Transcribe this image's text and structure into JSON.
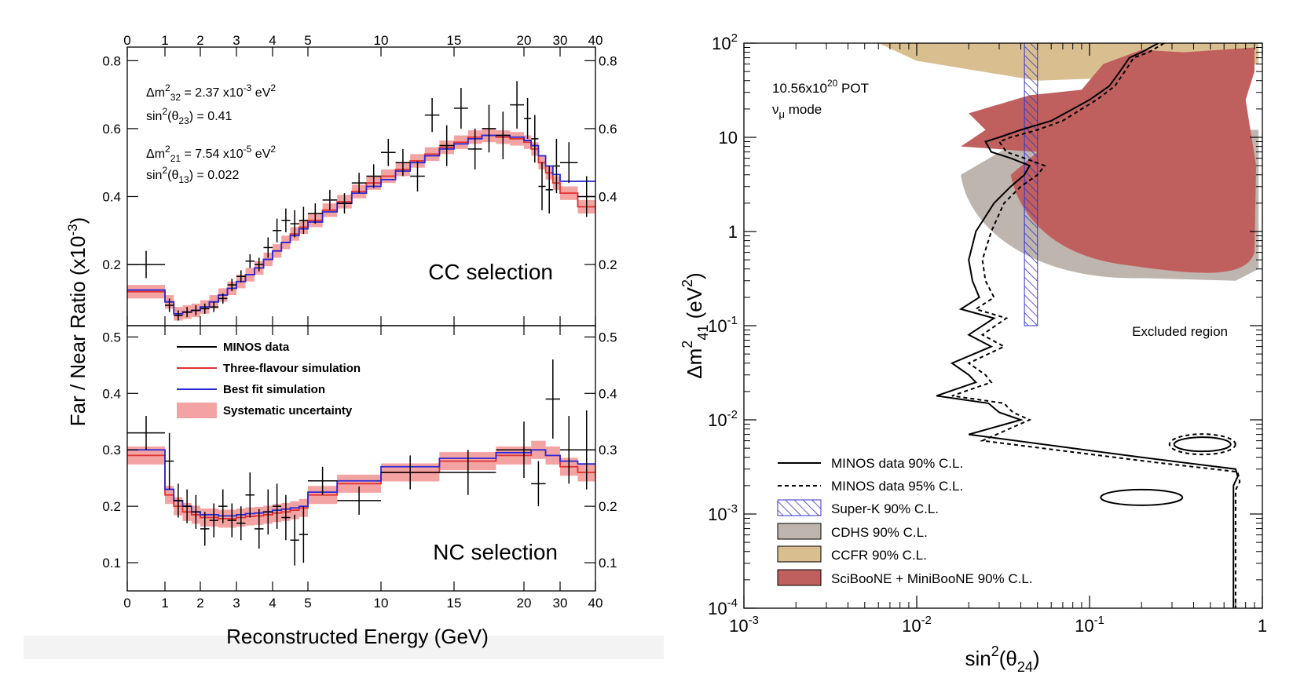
{
  "chart_data": [
    {
      "type": "line",
      "name": "cc-ratio",
      "ylabel": "Far / Near Ratio (x10",
      "ylabel_exp": "-3",
      "ylabel_close": ")",
      "xlabel": "Reconstructed Energy (GeV)",
      "x_tick_labels": [
        "0",
        "1",
        "2",
        "3",
        "4",
        "5",
        "10",
        "15",
        "20",
        "30",
        "40"
      ],
      "x_tick_values": [
        0,
        1,
        2,
        3,
        4,
        5,
        10,
        15,
        20,
        30,
        40
      ],
      "y_ticks": [
        0.2,
        0.4,
        0.6,
        0.8
      ],
      "y_tick_labels": [
        "0.2",
        "0.4",
        "0.6",
        "0.8"
      ],
      "ylim": [
        0.02,
        0.84
      ],
      "panel_label": "CC selection",
      "params": [
        {
          "pre": "Δm",
          "sub": "32",
          "sup": "2",
          "post": " = 2.37 x10",
          "exp": "-3",
          "tail": " eV",
          "tailsup": "2"
        },
        {
          "pre": "sin",
          "sub": "",
          "sup": "2",
          "post": "(θ",
          "sub2": "23",
          "post2": ") = 0.41"
        },
        {
          "pre": "Δm",
          "sub": "21",
          "sup": "2",
          "post": " = 7.54 x10",
          "exp": "-5",
          "tail": " eV",
          "tailsup": "2"
        },
        {
          "pre": "sin",
          "sub": "",
          "sup": "2",
          "post": "(θ",
          "sub2": "13",
          "post2": ") = 0.022"
        }
      ],
      "bin_edges": [
        0,
        0.5,
        1,
        1.25,
        1.5,
        1.75,
        2,
        2.25,
        2.5,
        2.75,
        3,
        3.25,
        3.5,
        3.75,
        4,
        4.25,
        4.5,
        4.75,
        5,
        6,
        7,
        8,
        9,
        10,
        11,
        12,
        13,
        14,
        15,
        16,
        17,
        18,
        19,
        20,
        22,
        24,
        26,
        28,
        30,
        35,
        40
      ],
      "three_flavour": [
        0.12,
        0.12,
        0.09,
        0.055,
        0.06,
        0.065,
        0.075,
        0.09,
        0.11,
        0.13,
        0.15,
        0.17,
        0.19,
        0.215,
        0.24,
        0.265,
        0.29,
        0.31,
        0.33,
        0.36,
        0.385,
        0.415,
        0.44,
        0.46,
        0.48,
        0.505,
        0.525,
        0.545,
        0.56,
        0.575,
        0.58,
        0.575,
        0.57,
        0.56,
        0.54,
        0.5,
        0.47,
        0.44,
        0.41,
        0.37
      ],
      "sys_halfwidth": 0.02,
      "best_fit": [
        0.125,
        0.125,
        0.09,
        0.055,
        0.06,
        0.065,
        0.075,
        0.09,
        0.11,
        0.13,
        0.15,
        0.17,
        0.19,
        0.215,
        0.24,
        0.265,
        0.285,
        0.305,
        0.325,
        0.355,
        0.38,
        0.41,
        0.43,
        0.45,
        0.475,
        0.5,
        0.52,
        0.54,
        0.555,
        0.57,
        0.58,
        0.58,
        0.575,
        0.565,
        0.55,
        0.52,
        0.49,
        0.465,
        0.445,
        0.445
      ],
      "points": [
        {
          "x": 0.5,
          "y": 0.2,
          "xerr": 0.5,
          "yerr": 0.04
        },
        {
          "x": 1.125,
          "y": 0.08,
          "xerr": 0.125,
          "yerr": 0.02
        },
        {
          "x": 1.375,
          "y": 0.05,
          "xerr": 0.125,
          "yerr": 0.015
        },
        {
          "x": 1.625,
          "y": 0.06,
          "xerr": 0.125,
          "yerr": 0.015
        },
        {
          "x": 1.875,
          "y": 0.065,
          "xerr": 0.125,
          "yerr": 0.015
        },
        {
          "x": 2.125,
          "y": 0.07,
          "xerr": 0.125,
          "yerr": 0.015
        },
        {
          "x": 2.375,
          "y": 0.075,
          "xerr": 0.125,
          "yerr": 0.015
        },
        {
          "x": 2.625,
          "y": 0.1,
          "xerr": 0.125,
          "yerr": 0.015
        },
        {
          "x": 2.875,
          "y": 0.14,
          "xerr": 0.125,
          "yerr": 0.018
        },
        {
          "x": 3.125,
          "y": 0.165,
          "xerr": 0.125,
          "yerr": 0.018
        },
        {
          "x": 3.375,
          "y": 0.21,
          "xerr": 0.125,
          "yerr": 0.02
        },
        {
          "x": 3.625,
          "y": 0.2,
          "xerr": 0.125,
          "yerr": 0.02
        },
        {
          "x": 3.875,
          "y": 0.25,
          "xerr": 0.125,
          "yerr": 0.03
        },
        {
          "x": 4.125,
          "y": 0.3,
          "xerr": 0.125,
          "yerr": 0.035
        },
        {
          "x": 4.375,
          "y": 0.33,
          "xerr": 0.125,
          "yerr": 0.035
        },
        {
          "x": 4.625,
          "y": 0.32,
          "xerr": 0.125,
          "yerr": 0.04
        },
        {
          "x": 4.875,
          "y": 0.33,
          "xerr": 0.125,
          "yerr": 0.04
        },
        {
          "x": 5.5,
          "y": 0.35,
          "xerr": 0.5,
          "yerr": 0.03
        },
        {
          "x": 6.5,
          "y": 0.39,
          "xerr": 0.5,
          "yerr": 0.03
        },
        {
          "x": 7.5,
          "y": 0.38,
          "xerr": 0.5,
          "yerr": 0.03
        },
        {
          "x": 8.5,
          "y": 0.44,
          "xerr": 0.5,
          "yerr": 0.03
        },
        {
          "x": 9.5,
          "y": 0.46,
          "xerr": 0.5,
          "yerr": 0.035
        },
        {
          "x": 10.5,
          "y": 0.53,
          "xerr": 0.5,
          "yerr": 0.04
        },
        {
          "x": 11.5,
          "y": 0.5,
          "xerr": 0.5,
          "yerr": 0.04
        },
        {
          "x": 12.5,
          "y": 0.46,
          "xerr": 0.5,
          "yerr": 0.045
        },
        {
          "x": 13.5,
          "y": 0.64,
          "xerr": 0.5,
          "yerr": 0.05
        },
        {
          "x": 14.5,
          "y": 0.55,
          "xerr": 0.5,
          "yerr": 0.06
        },
        {
          "x": 15.5,
          "y": 0.66,
          "xerr": 0.5,
          "yerr": 0.06
        },
        {
          "x": 16.5,
          "y": 0.54,
          "xerr": 0.5,
          "yerr": 0.06
        },
        {
          "x": 17.5,
          "y": 0.6,
          "xerr": 0.5,
          "yerr": 0.07
        },
        {
          "x": 18.5,
          "y": 0.58,
          "xerr": 0.5,
          "yerr": 0.07
        },
        {
          "x": 19.5,
          "y": 0.67,
          "xerr": 0.5,
          "yerr": 0.07
        },
        {
          "x": 21,
          "y": 0.63,
          "xerr": 1,
          "yerr": 0.06
        },
        {
          "x": 23,
          "y": 0.57,
          "xerr": 1,
          "yerr": 0.07
        },
        {
          "x": 25,
          "y": 0.43,
          "xerr": 1,
          "yerr": 0.07
        },
        {
          "x": 27,
          "y": 0.42,
          "xerr": 1,
          "yerr": 0.07
        },
        {
          "x": 29,
          "y": 0.49,
          "xerr": 1,
          "yerr": 0.08
        },
        {
          "x": 32.5,
          "y": 0.5,
          "xerr": 2.5,
          "yerr": 0.06
        },
        {
          "x": 37.5,
          "y": 0.4,
          "xerr": 2.5,
          "yerr": 0.06
        }
      ]
    },
    {
      "type": "line",
      "name": "nc-ratio",
      "panel_label": "NC selection",
      "y_ticks": [
        0.1,
        0.2,
        0.3,
        0.4,
        0.5
      ],
      "y_tick_labels": [
        "0.1",
        "0.2",
        "0.3",
        "0.4",
        "0.5"
      ],
      "ylim": [
        0.05,
        0.52
      ],
      "legend": [
        "MINOS data",
        "Three-flavour simulation",
        "Best fit simulation",
        "Systematic uncertainty"
      ],
      "bin_edges": [
        0,
        1,
        1.25,
        1.5,
        1.75,
        2,
        2.25,
        2.5,
        2.75,
        3,
        3.25,
        3.5,
        3.75,
        4,
        4.25,
        4.5,
        4.75,
        5,
        7,
        10,
        14,
        18,
        22,
        26,
        30,
        35,
        40
      ],
      "three_flavour": [
        0.29,
        0.22,
        0.2,
        0.19,
        0.185,
        0.18,
        0.18,
        0.178,
        0.178,
        0.18,
        0.182,
        0.183,
        0.185,
        0.188,
        0.19,
        0.193,
        0.197,
        0.22,
        0.24,
        0.26,
        0.28,
        0.29,
        0.3,
        0.29,
        0.27,
        0.26
      ],
      "sys_halfwidth": 0.016,
      "best_fit": [
        0.3,
        0.23,
        0.21,
        0.2,
        0.19,
        0.185,
        0.185,
        0.183,
        0.183,
        0.185,
        0.187,
        0.188,
        0.19,
        0.193,
        0.195,
        0.197,
        0.2,
        0.225,
        0.245,
        0.27,
        0.285,
        0.295,
        0.3,
        0.29,
        0.28,
        0.275
      ],
      "points": [
        {
          "x": 0.5,
          "y": 0.33,
          "xerr": 0.5,
          "yerr": 0.03
        },
        {
          "x": 1.125,
          "y": 0.28,
          "xerr": 0.125,
          "yerr": 0.05
        },
        {
          "x": 1.375,
          "y": 0.21,
          "xerr": 0.125,
          "yerr": 0.03
        },
        {
          "x": 1.625,
          "y": 0.2,
          "xerr": 0.125,
          "yerr": 0.03
        },
        {
          "x": 1.875,
          "y": 0.19,
          "xerr": 0.125,
          "yerr": 0.03
        },
        {
          "x": 2.125,
          "y": 0.16,
          "xerr": 0.125,
          "yerr": 0.03
        },
        {
          "x": 2.375,
          "y": 0.175,
          "xerr": 0.125,
          "yerr": 0.03
        },
        {
          "x": 2.625,
          "y": 0.2,
          "xerr": 0.125,
          "yerr": 0.03
        },
        {
          "x": 2.875,
          "y": 0.175,
          "xerr": 0.125,
          "yerr": 0.03
        },
        {
          "x": 3.125,
          "y": 0.17,
          "xerr": 0.125,
          "yerr": 0.03
        },
        {
          "x": 3.375,
          "y": 0.22,
          "xerr": 0.125,
          "yerr": 0.04
        },
        {
          "x": 3.625,
          "y": 0.16,
          "xerr": 0.125,
          "yerr": 0.035
        },
        {
          "x": 3.875,
          "y": 0.19,
          "xerr": 0.125,
          "yerr": 0.04
        },
        {
          "x": 4.125,
          "y": 0.2,
          "xerr": 0.125,
          "yerr": 0.04
        },
        {
          "x": 4.375,
          "y": 0.18,
          "xerr": 0.125,
          "yerr": 0.04
        },
        {
          "x": 4.625,
          "y": 0.14,
          "xerr": 0.125,
          "yerr": 0.045
        },
        {
          "x": 4.875,
          "y": 0.15,
          "xerr": 0.125,
          "yerr": 0.05
        },
        {
          "x": 6,
          "y": 0.245,
          "xerr": 1,
          "yerr": 0.025
        },
        {
          "x": 8.5,
          "y": 0.21,
          "xerr": 1.5,
          "yerr": 0.025
        },
        {
          "x": 12,
          "y": 0.26,
          "xerr": 2,
          "yerr": 0.03
        },
        {
          "x": 16,
          "y": 0.26,
          "xerr": 2,
          "yerr": 0.04
        },
        {
          "x": 20,
          "y": 0.3,
          "xerr": 2,
          "yerr": 0.05
        },
        {
          "x": 24,
          "y": 0.24,
          "xerr": 2,
          "yerr": 0.04
        },
        {
          "x": 28,
          "y": 0.39,
          "xerr": 2,
          "yerr": 0.07
        },
        {
          "x": 32.5,
          "y": 0.3,
          "xerr": 2.5,
          "yerr": 0.06
        },
        {
          "x": 37.5,
          "y": 0.3,
          "xerr": 2.5,
          "yerr": 0.07
        }
      ]
    },
    {
      "type": "area",
      "name": "exclusion",
      "xscale": "log",
      "yscale": "log",
      "xlim": [
        0.001,
        1
      ],
      "ylim": [
        0.0001,
        100
      ],
      "x_ticks": [
        0.001,
        0.01,
        0.1,
        1
      ],
      "x_tick_labels": [
        {
          "base": "10",
          "exp": "-3"
        },
        {
          "base": "10",
          "exp": "-2"
        },
        {
          "base": "10",
          "exp": "-1"
        },
        {
          "base": "1",
          "exp": ""
        }
      ],
      "y_ticks": [
        0.0001,
        0.001,
        0.01,
        0.1,
        1,
        10,
        100
      ],
      "y_tick_labels": [
        {
          "base": "10",
          "exp": "-4"
        },
        {
          "base": "10",
          "exp": "-3"
        },
        {
          "base": "10",
          "exp": "-2"
        },
        {
          "base": "10",
          "exp": "-1"
        },
        {
          "base": "1",
          "exp": ""
        },
        {
          "base": "10",
          "exp": ""
        },
        {
          "base": "10",
          "exp": "2"
        }
      ],
      "xlabel": {
        "pre": "sin",
        "sup": "2",
        "mid": "(θ",
        "sub": "24",
        "post": ")"
      },
      "ylabel": {
        "pre": "Δm",
        "sup": "2",
        "sub": "41",
        "post": " (eV",
        "sup2": "2",
        "end": ")"
      },
      "pot_label": {
        "pre": "10.56x10",
        "exp": "20",
        "post": " POT"
      },
      "mode_label": {
        "pre": "ν",
        "sub": "μ",
        "post": " mode"
      },
      "excluded_label": "Excluded region",
      "legend": [
        {
          "label": "MINOS data 90% C.L.",
          "style": "solid"
        },
        {
          "label": "MINOS data 95% C.L.",
          "style": "dashed"
        },
        {
          "label": "Super-K 90% C.L.",
          "style": "hatch",
          "color": "#3333cc"
        },
        {
          "label": "CDHS 90% C.L.",
          "style": "fill",
          "color": "#bdb5ae"
        },
        {
          "label": "CCFR 90% C.L.",
          "style": "fill",
          "color": "#d9bf90"
        },
        {
          "label": "SciBooNE + MiniBooNE 90% C.L.",
          "style": "fill",
          "color": "#c0605e"
        }
      ],
      "superk_band": {
        "x": [
          0.042,
          0.05
        ],
        "y": [
          0.1,
          100
        ]
      },
      "minos_90": [
        [
          0.25,
          100
        ],
        [
          0.2,
          80
        ],
        [
          0.17,
          70
        ],
        [
          0.15,
          50
        ],
        [
          0.13,
          35
        ],
        [
          0.1,
          25
        ],
        [
          0.08,
          20
        ],
        [
          0.06,
          15
        ],
        [
          0.04,
          12
        ],
        [
          0.03,
          10
        ],
        [
          0.025,
          9
        ],
        [
          0.027,
          7
        ],
        [
          0.035,
          6
        ],
        [
          0.045,
          5
        ],
        [
          0.042,
          4
        ],
        [
          0.035,
          3
        ],
        [
          0.028,
          2
        ],
        [
          0.022,
          1
        ],
        [
          0.02,
          0.5
        ],
        [
          0.021,
          0.3
        ],
        [
          0.023,
          0.2
        ],
        [
          0.018,
          0.15
        ],
        [
          0.028,
          0.12
        ],
        [
          0.02,
          0.08
        ],
        [
          0.027,
          0.06
        ],
        [
          0.016,
          0.04
        ],
        [
          0.02,
          0.03
        ],
        [
          0.022,
          0.025
        ],
        [
          0.013,
          0.018
        ],
        [
          0.026,
          0.015
        ],
        [
          0.03,
          0.012
        ],
        [
          0.04,
          0.01
        ],
        [
          0.02,
          0.007
        ],
        [
          0.2,
          0.004
        ],
        [
          0.7,
          0.003
        ],
        [
          0.72,
          0.0025
        ],
        [
          0.68,
          0.002
        ],
        [
          0.68,
          0.0001
        ]
      ],
      "minos_95": [
        [
          0.27,
          100
        ],
        [
          0.22,
          80
        ],
        [
          0.18,
          70
        ],
        [
          0.16,
          50
        ],
        [
          0.14,
          35
        ],
        [
          0.11,
          25
        ],
        [
          0.09,
          20
        ],
        [
          0.07,
          15
        ],
        [
          0.05,
          12
        ],
        [
          0.035,
          10
        ],
        [
          0.03,
          9
        ],
        [
          0.033,
          7
        ],
        [
          0.042,
          6
        ],
        [
          0.055,
          5
        ],
        [
          0.05,
          4
        ],
        [
          0.04,
          3
        ],
        [
          0.032,
          2
        ],
        [
          0.027,
          1
        ],
        [
          0.024,
          0.5
        ],
        [
          0.025,
          0.3
        ],
        [
          0.028,
          0.2
        ],
        [
          0.022,
          0.15
        ],
        [
          0.033,
          0.12
        ],
        [
          0.024,
          0.08
        ],
        [
          0.032,
          0.06
        ],
        [
          0.02,
          0.04
        ],
        [
          0.025,
          0.03
        ],
        [
          0.027,
          0.025
        ],
        [
          0.016,
          0.018
        ],
        [
          0.032,
          0.015
        ],
        [
          0.036,
          0.012
        ],
        [
          0.045,
          0.01
        ],
        [
          0.024,
          0.006
        ],
        [
          0.25,
          0.0035
        ],
        [
          0.72,
          0.0028
        ],
        [
          0.74,
          0.0022
        ],
        [
          0.7,
          0.0018
        ],
        [
          0.7,
          0.0001
        ]
      ]
    }
  ]
}
